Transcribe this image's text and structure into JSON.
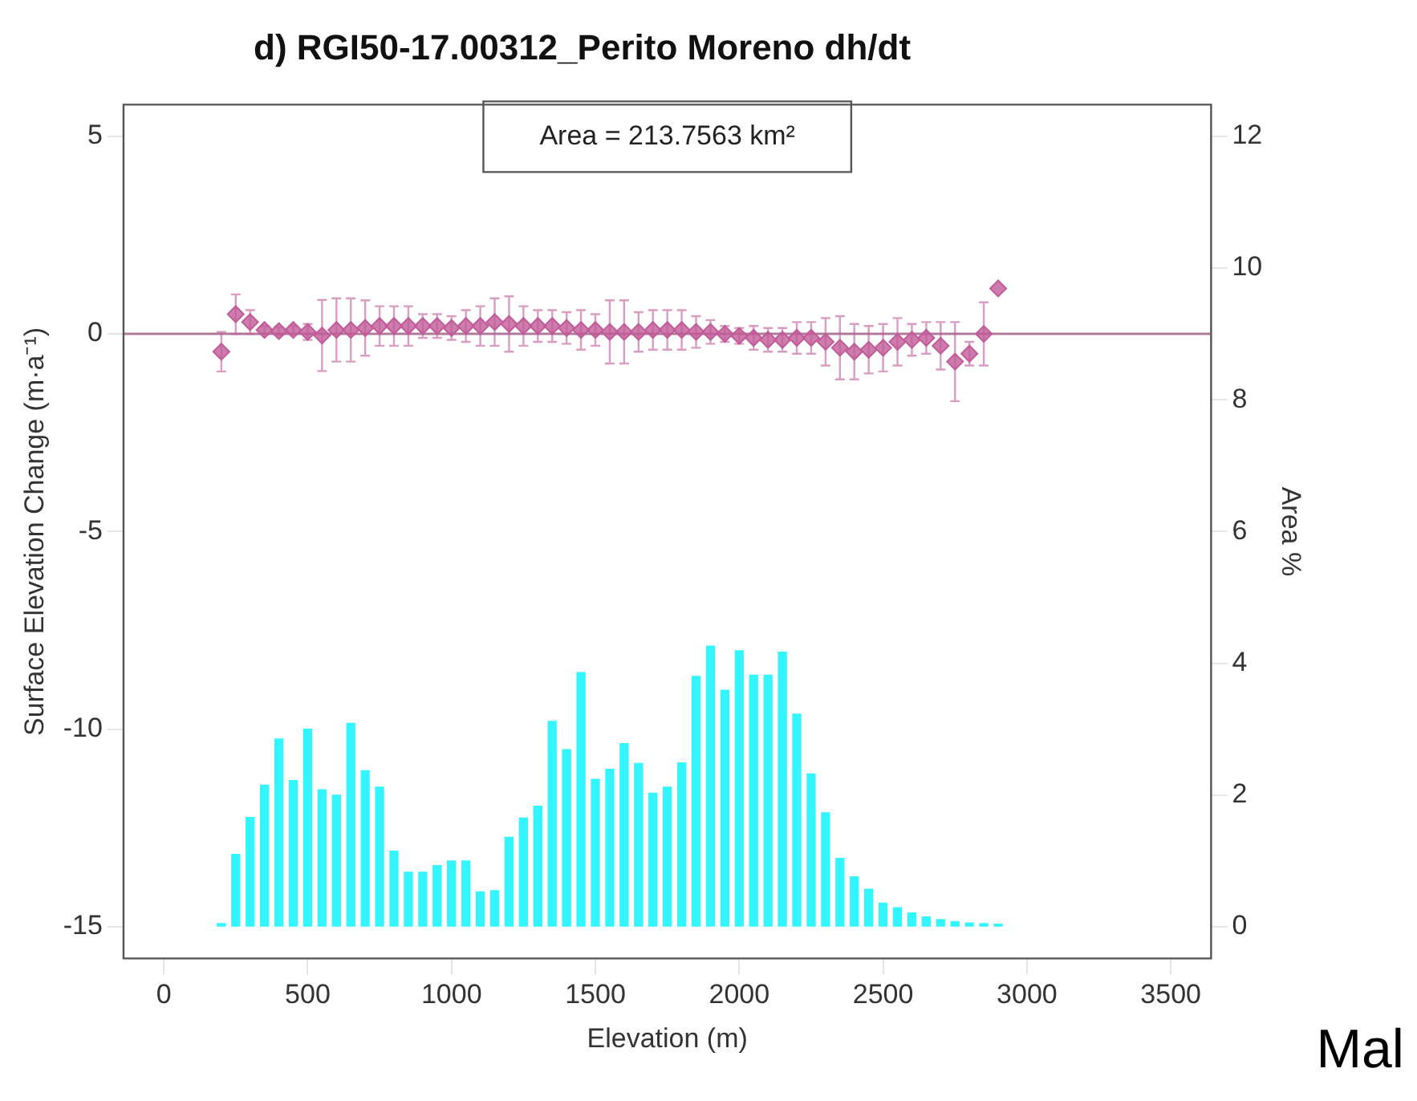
{
  "chart_data": {
    "type": "bar",
    "title": "d) RGI50-17.00312_Perito Moreno dh/dt",
    "xlabel": "Elevation (m)",
    "ylabel": "Surface Elevation Change (m·a⁻¹)",
    "y2label": "Area %",
    "annotations": [
      "Area = 213.7563 km²",
      "Mal"
    ],
    "x": [
      200,
      250,
      300,
      350,
      400,
      450,
      500,
      550,
      600,
      650,
      700,
      750,
      800,
      850,
      900,
      950,
      1000,
      1050,
      1100,
      1150,
      1200,
      1250,
      1300,
      1350,
      1400,
      1450,
      1500,
      1550,
      1600,
      1650,
      1700,
      1750,
      1800,
      1850,
      1900,
      1950,
      2000,
      2050,
      2100,
      2150,
      2200,
      2250,
      2300,
      2350,
      2400,
      2450,
      2500,
      2550,
      2600,
      2650,
      2700,
      2750,
      2800,
      2850,
      2900
    ],
    "series": [
      {
        "axis": "y2",
        "color": "#33f5ff",
        "values": [
          0.05,
          1.1,
          1.66,
          2.15,
          2.85,
          2.22,
          3.0,
          2.08,
          2.0,
          3.09,
          2.37,
          2.12,
          1.15,
          0.83,
          0.83,
          0.93,
          1.0,
          1.0,
          0.53,
          0.55,
          1.36,
          1.65,
          1.83,
          3.12,
          2.69,
          3.86,
          2.24,
          2.39,
          2.78,
          2.48,
          2.03,
          2.12,
          2.49,
          3.8,
          4.26,
          3.59,
          4.19,
          3.82,
          3.82,
          4.17,
          3.23,
          2.32,
          1.73,
          1.04,
          0.76,
          0.57,
          0.36,
          0.29,
          0.21,
          0.15,
          0.11,
          0.08,
          0.06,
          0.05,
          0.04
        ]
      },
      {
        "type": "scatter",
        "color": "#c25b99",
        "values": [
          -0.45,
          0.5,
          0.3,
          0.1,
          0.07,
          0.1,
          0.05,
          -0.04,
          0.1,
          0.1,
          0.15,
          0.2,
          0.2,
          0.2,
          0.2,
          0.2,
          0.15,
          0.2,
          0.2,
          0.3,
          0.25,
          0.2,
          0.2,
          0.2,
          0.15,
          0.1,
          0.1,
          0.05,
          0.05,
          0.05,
          0.1,
          0.1,
          0.1,
          0.05,
          0.05,
          0.0,
          -0.05,
          -0.1,
          -0.15,
          -0.15,
          -0.1,
          -0.1,
          -0.2,
          -0.35,
          -0.45,
          -0.4,
          -0.35,
          -0.2,
          -0.15,
          -0.1,
          -0.3,
          -0.7,
          -0.5,
          0.0,
          1.15
        ],
        "errors": [
          0.5,
          0.5,
          0.3,
          0.1,
          0.1,
          0.1,
          0.2,
          0.9,
          0.8,
          0.8,
          0.7,
          0.5,
          0.5,
          0.5,
          0.3,
          0.3,
          0.3,
          0.4,
          0.5,
          0.6,
          0.7,
          0.5,
          0.4,
          0.4,
          0.4,
          0.5,
          0.4,
          0.8,
          0.8,
          0.5,
          0.5,
          0.5,
          0.5,
          0.4,
          0.3,
          0.2,
          0.2,
          0.3,
          0.3,
          0.3,
          0.4,
          0.4,
          0.6,
          0.8,
          0.7,
          0.6,
          0.6,
          0.6,
          0.4,
          0.4,
          0.6,
          1.0,
          0.3,
          0.8,
          null
        ]
      }
    ],
    "marker": "diamond",
    "xlim": [
      -140,
      3640
    ],
    "xticks": [
      0,
      500,
      1000,
      1500,
      2000,
      2500,
      3000,
      3500
    ],
    "ylim": [
      -15.8,
      5.8
    ],
    "yticks": [
      -15,
      -10,
      -5,
      0,
      5
    ],
    "y2lim": [
      -0.48,
      12.48
    ],
    "y2ticks": [
      0,
      2,
      4,
      6,
      8,
      10,
      12
    ],
    "ref_lines": [
      {
        "axis": "y",
        "value": 0,
        "color": "#b07a9a"
      }
    ],
    "grid": false
  }
}
